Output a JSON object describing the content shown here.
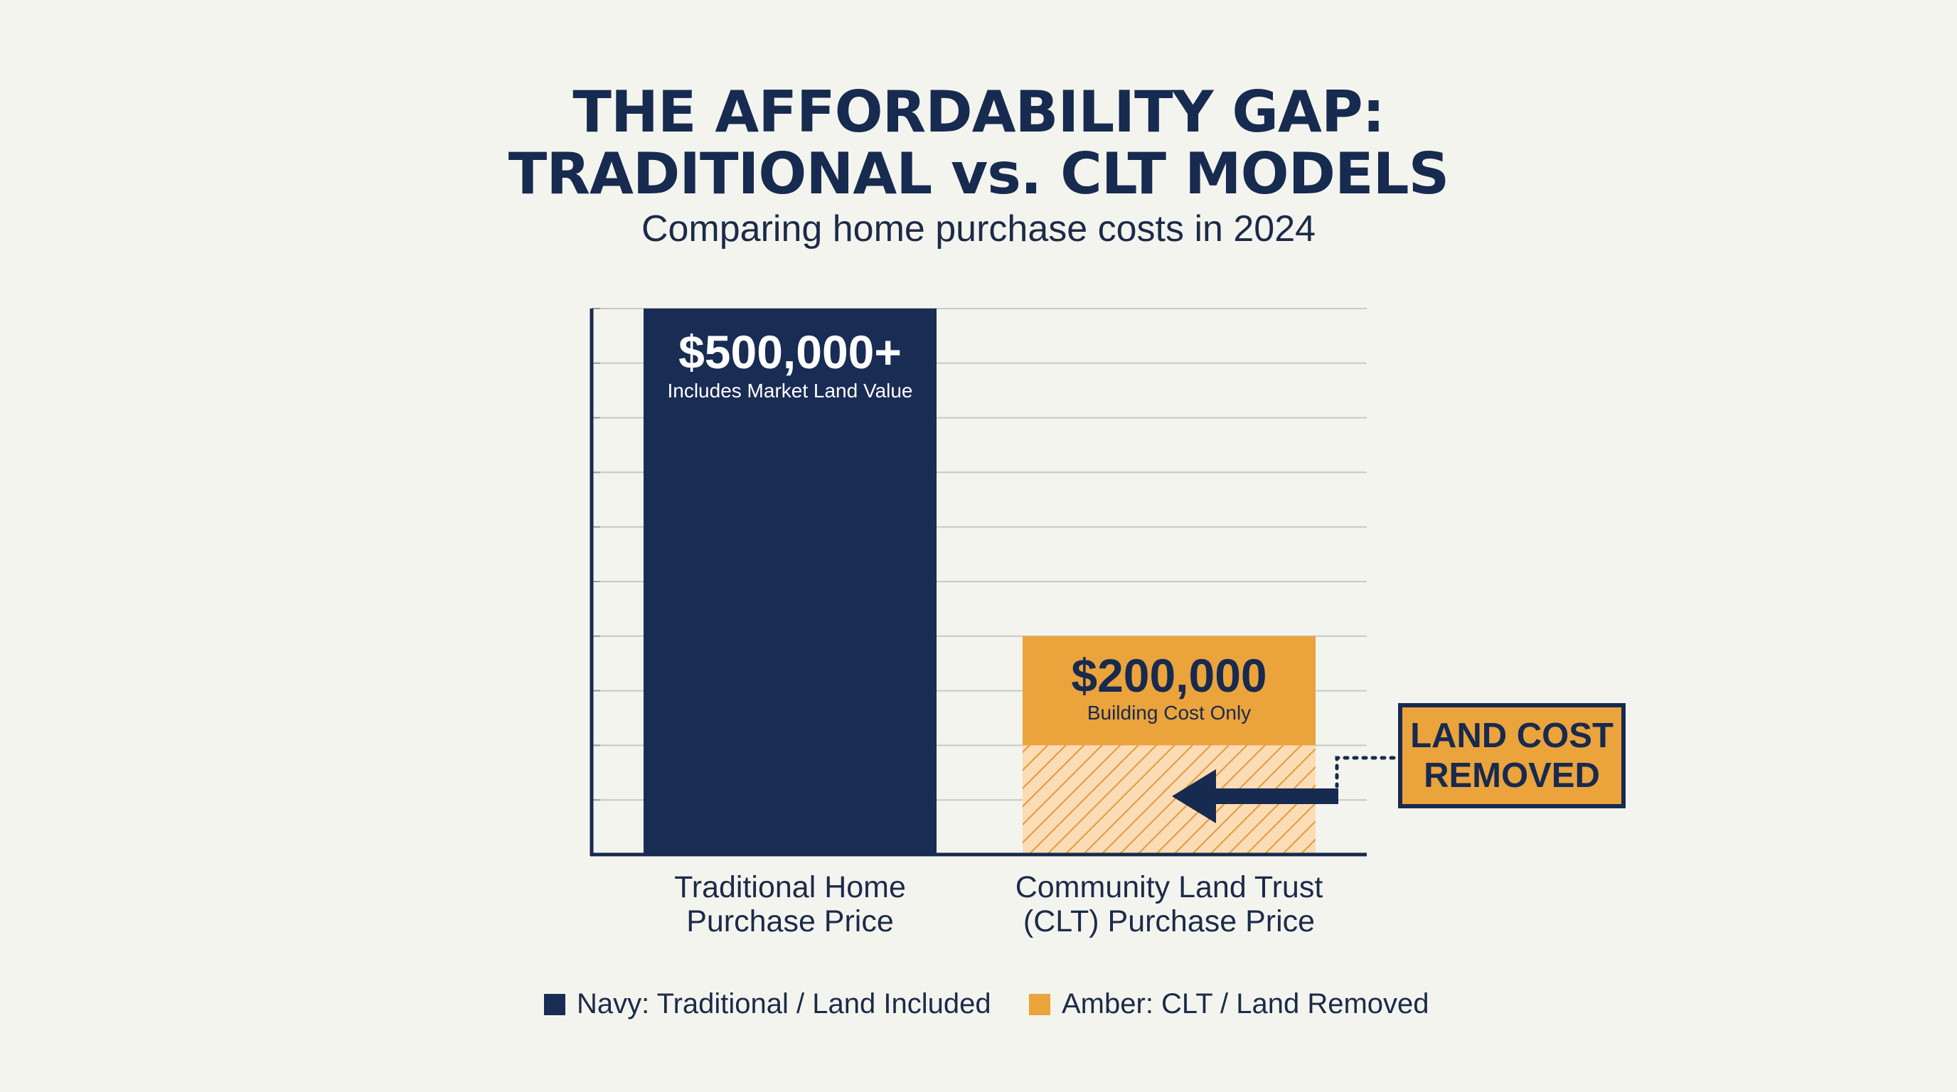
{
  "title": {
    "line1": "THE AFFORDABILITY GAP:",
    "line2": "TRADITIONAL vs. CLT MODELS"
  },
  "subtitle": "Comparing home purchase costs in 2024",
  "chart_data": {
    "type": "bar",
    "categories": [
      "Traditional Home Purchase Price",
      "Community Land Trust (CLT) Purchase Price"
    ],
    "values": [
      500000,
      200000
    ],
    "value_labels": [
      "$500,000+",
      "$200,000"
    ],
    "bar_descriptions": [
      "Includes Market Land Value",
      "Building Cost Only"
    ],
    "colors": [
      "#182c54",
      "#eba33c"
    ],
    "ylim": [
      0,
      500000
    ],
    "removed_segment_value": 100000,
    "grid": true,
    "legend_position": "bottom",
    "legend": [
      {
        "label": "Navy: Traditional / Land Included",
        "color": "#182c54"
      },
      {
        "label": "Amber: CLT / Land Removed",
        "color": "#eba33c"
      }
    ],
    "annotation": {
      "line1": "LAND COST",
      "line2": "REMOVED"
    }
  },
  "category_label_lines": [
    [
      "Traditional Home",
      "Purchase Price"
    ],
    [
      "Community Land Trust",
      "(CLT) Purchase Price"
    ]
  ]
}
